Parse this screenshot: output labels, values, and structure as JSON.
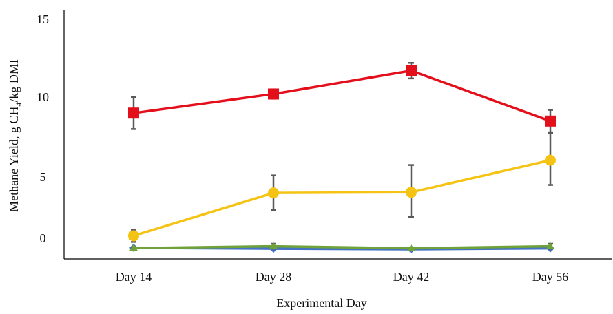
{
  "chart_data": {
    "type": "line",
    "xlabel": "Experimental Day",
    "ylabel_parts": {
      "pre": "Methane Yield, g CH",
      "sub": "4",
      "post": "/kg DMI"
    },
    "categories": [
      "Day 14",
      "Day 28",
      "Day 42",
      "Day 56"
    ],
    "y_ticks": [
      0,
      5,
      10,
      15
    ],
    "y_tick_labels": [
      "0",
      "5",
      "10",
      "15"
    ],
    "ylim": [
      -1.3,
      15.0
    ],
    "grid": false,
    "legend": "none",
    "series": [
      {
        "color": "#e3101c",
        "marker": "square",
        "values": [
          9.0,
          10.2,
          11.7,
          8.5
        ],
        "error": [
          1.0,
          0.3,
          0.5,
          0.7
        ]
      },
      {
        "color": "#f5c314",
        "marker": "circle",
        "values": [
          0.2,
          3.7,
          3.75,
          6.05
        ],
        "error": [
          0.5,
          1.4,
          2.0,
          1.7
        ]
      },
      {
        "color": "#6fa33a",
        "marker": "triangle",
        "values": [
          -0.8,
          -0.65,
          -0.82,
          -0.65
        ],
        "error": [
          0.05,
          0.2,
          0.05,
          0.2
        ]
      },
      {
        "color": "#4472c4",
        "marker": "diamond",
        "values": [
          -0.78,
          -0.85,
          -0.9,
          -0.82
        ],
        "error": [
          0.05,
          0.05,
          0.05,
          0.05
        ]
      }
    ]
  }
}
